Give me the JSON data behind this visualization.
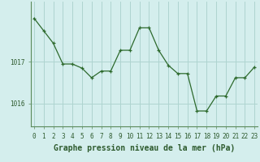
{
  "x": [
    0,
    1,
    2,
    3,
    4,
    5,
    6,
    7,
    8,
    9,
    10,
    11,
    12,
    13,
    14,
    15,
    16,
    17,
    18,
    19,
    20,
    21,
    22,
    23
  ],
  "y": [
    1018.05,
    1017.75,
    1017.45,
    1016.95,
    1016.95,
    1016.85,
    1016.62,
    1016.78,
    1016.78,
    1017.28,
    1017.28,
    1017.82,
    1017.82,
    1017.28,
    1016.92,
    1016.72,
    1016.72,
    1015.82,
    1015.82,
    1016.18,
    1016.18,
    1016.62,
    1016.62,
    1016.88
  ],
  "line_color": "#2d6a2d",
  "marker_color": "#2d6a2d",
  "bg_color": "#d4eeed",
  "grid_color": "#aed4d0",
  "xlabel": "Graphe pression niveau de la mer (hPa)",
  "xlabel_fontsize": 7.0,
  "tick_fontsize": 5.5,
  "ylim": [
    1015.45,
    1018.45
  ],
  "yticks": [
    1016.0,
    1017.0
  ],
  "ytick_labels": [
    "1016",
    "1017"
  ]
}
